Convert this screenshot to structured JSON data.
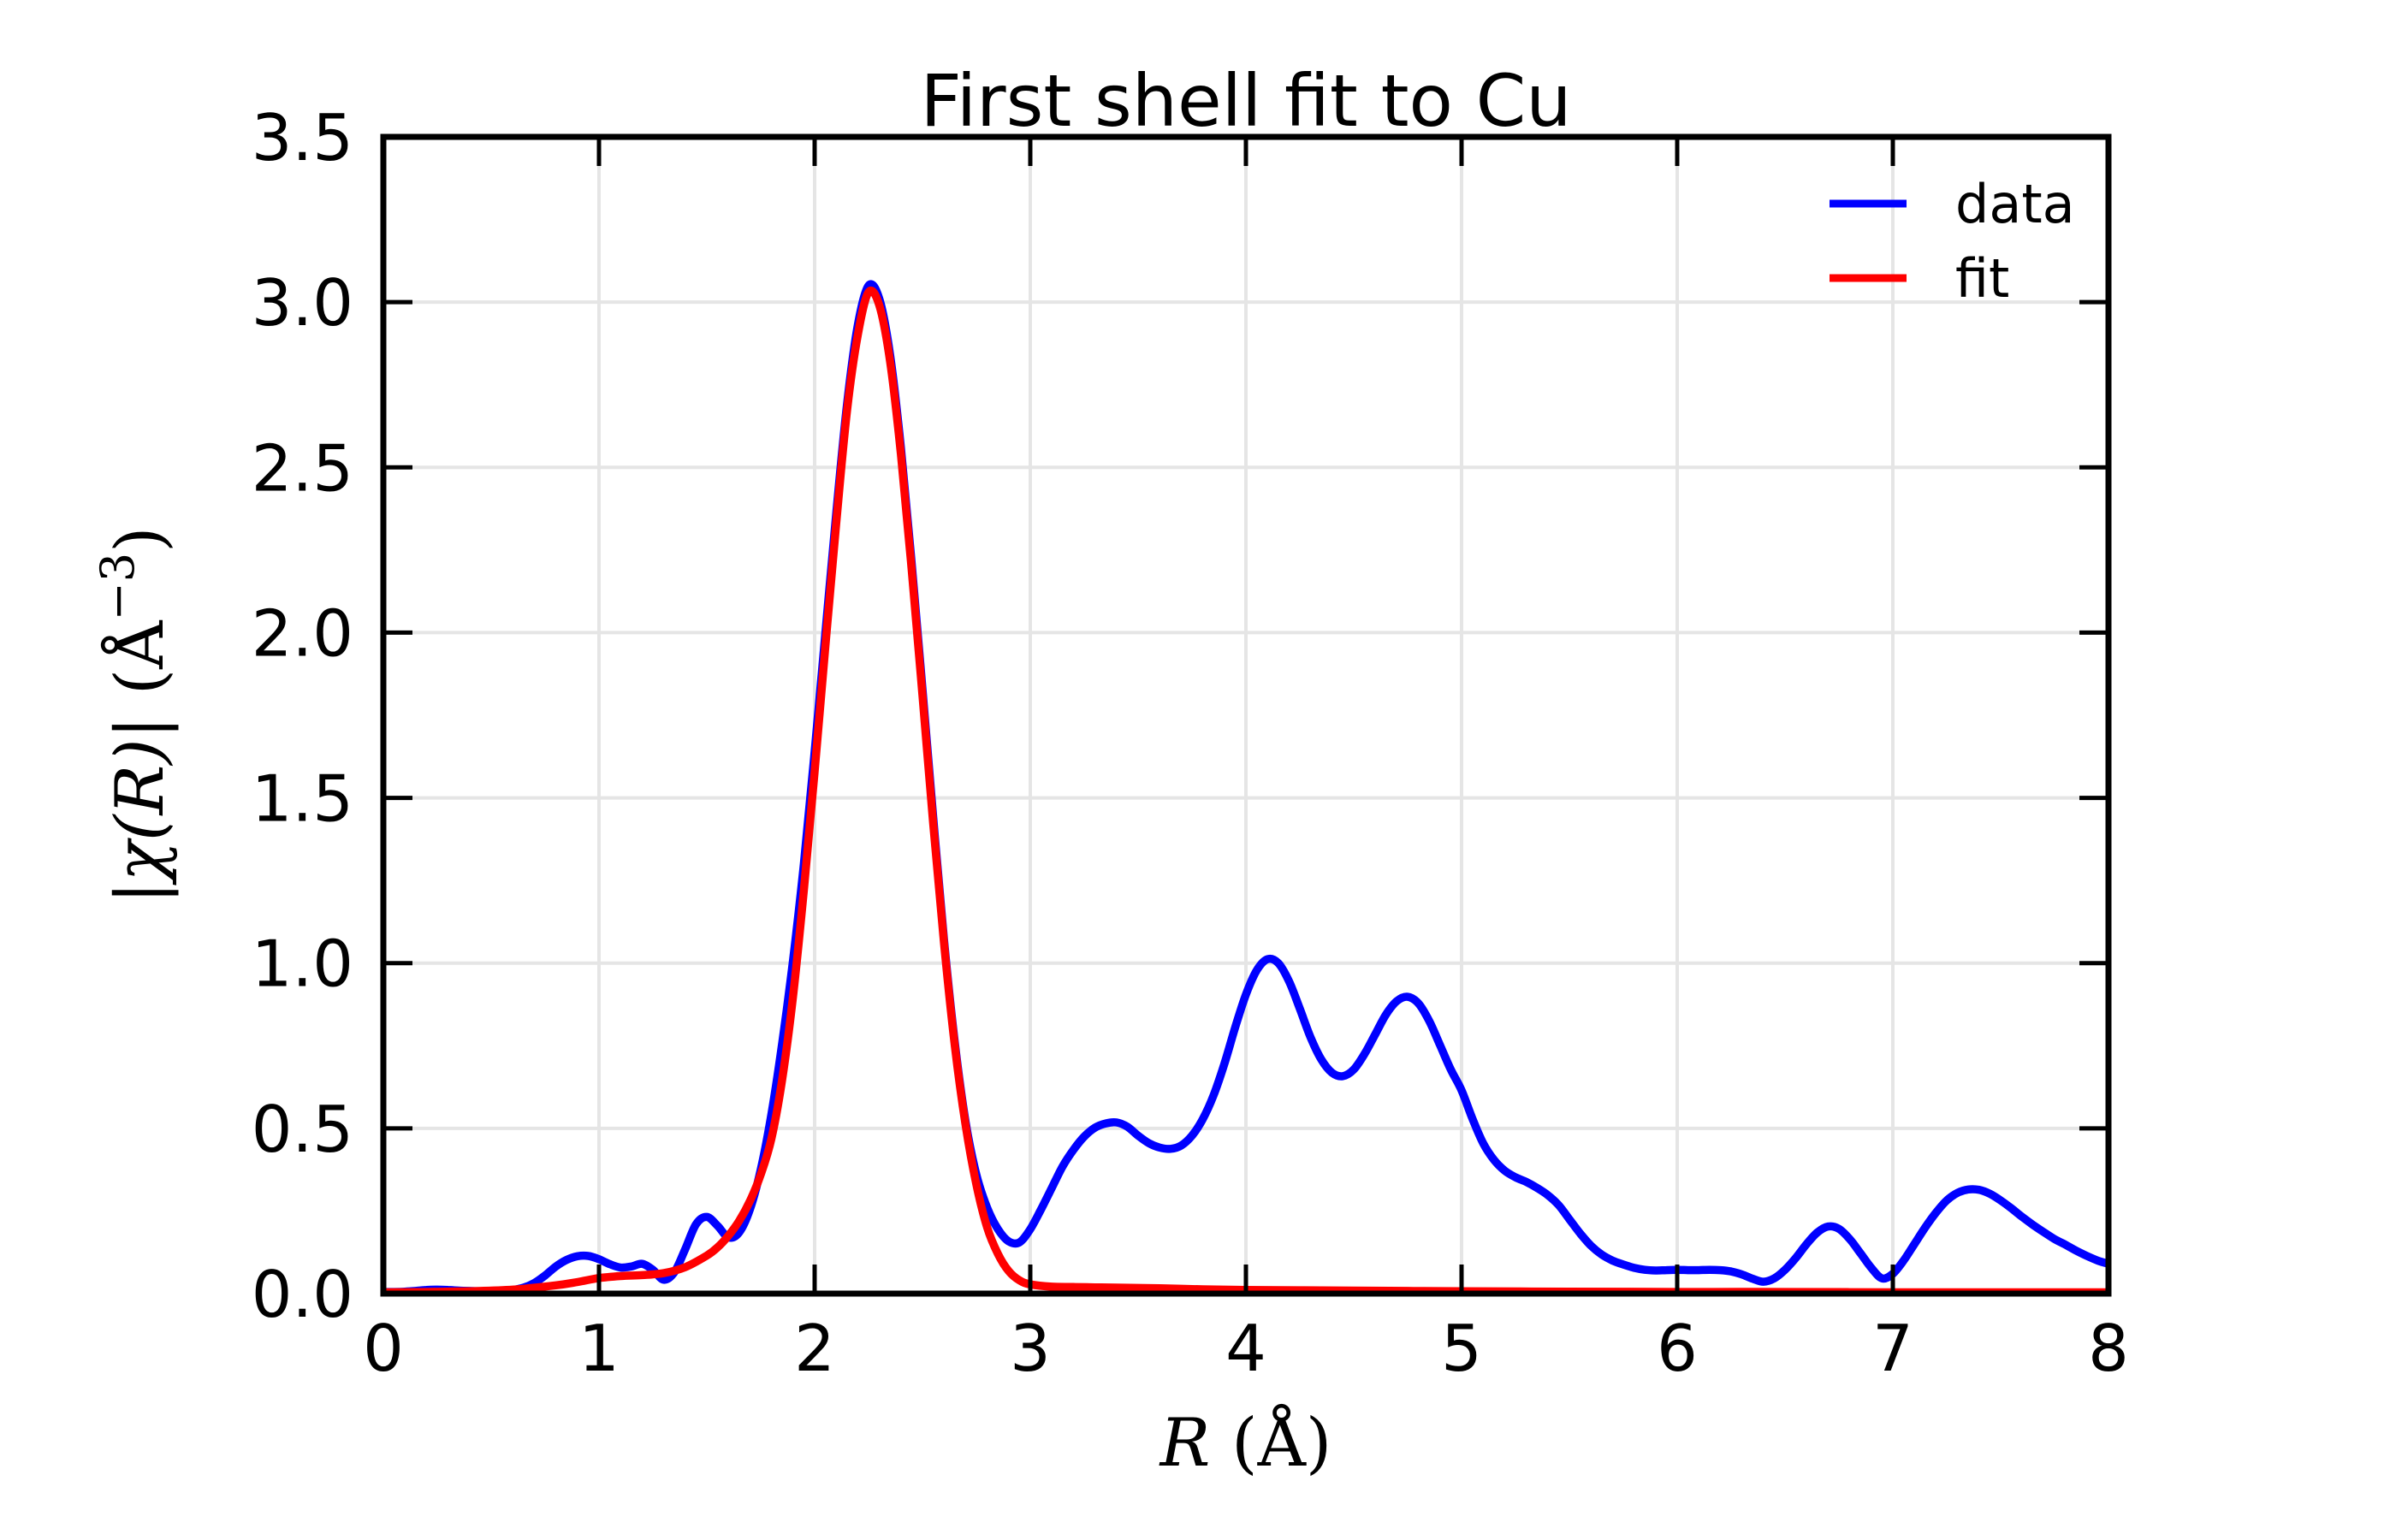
{
  "title": "First shell fit to Cu",
  "legend": {
    "entries": [
      {
        "label": "data",
        "color": "#0000ff"
      },
      {
        "label": "fit",
        "color": "#ff0000"
      }
    ],
    "position": "upper right",
    "frame": false
  },
  "colors": {
    "data_line": "#0000ff",
    "fit_line": "#ff0000",
    "grid": "#e5e5e5",
    "axes": "#000000",
    "background": "#ffffff"
  },
  "chart_data": {
    "type": "line",
    "title": "First shell fit to Cu",
    "xlabel": "R (Å)",
    "ylabel": "|χ(R)| (Å−3)",
    "xlabel_parts": {
      "italic": "R",
      "normal": " (Å)"
    },
    "ylabel_parts": {
      "italic": "|χ(R)|",
      "pre_sup": " (Å",
      "sup": "−3",
      "post": ")"
    },
    "xlim": [
      0,
      8
    ],
    "ylim": [
      0.0,
      3.5
    ],
    "xticks": [
      0,
      1,
      2,
      3,
      4,
      5,
      6,
      7,
      8
    ],
    "xtick_labels": [
      "0",
      "1",
      "2",
      "3",
      "4",
      "5",
      "6",
      "7",
      "8"
    ],
    "yticks": [
      0.0,
      0.5,
      1.0,
      1.5,
      2.0,
      2.5,
      3.0,
      3.5
    ],
    "ytick_labels": [
      "0.0",
      "0.5",
      "1.0",
      "1.5",
      "2.0",
      "2.5",
      "3.0",
      "3.5"
    ],
    "grid": true,
    "legend_position": "upper right",
    "series": [
      {
        "name": "data",
        "color": "#0000ff",
        "points": [
          [
            0.0,
            0.005
          ],
          [
            0.05,
            0.005
          ],
          [
            0.1,
            0.006
          ],
          [
            0.15,
            0.008
          ],
          [
            0.2,
            0.011
          ],
          [
            0.25,
            0.012
          ],
          [
            0.3,
            0.011
          ],
          [
            0.35,
            0.009
          ],
          [
            0.4,
            0.008
          ],
          [
            0.45,
            0.007
          ],
          [
            0.5,
            0.007
          ],
          [
            0.55,
            0.008
          ],
          [
            0.6,
            0.011
          ],
          [
            0.65,
            0.018
          ],
          [
            0.7,
            0.032
          ],
          [
            0.75,
            0.055
          ],
          [
            0.8,
            0.082
          ],
          [
            0.85,
            0.102
          ],
          [
            0.9,
            0.113
          ],
          [
            0.95,
            0.114
          ],
          [
            1.0,
            0.104
          ],
          [
            1.05,
            0.089
          ],
          [
            1.1,
            0.079
          ],
          [
            1.15,
            0.082
          ],
          [
            1.2,
            0.09
          ],
          [
            1.25,
            0.072
          ],
          [
            1.3,
            0.042
          ],
          [
            1.35,
            0.065
          ],
          [
            1.4,
            0.135
          ],
          [
            1.45,
            0.21
          ],
          [
            1.5,
            0.232
          ],
          [
            1.55,
            0.205
          ],
          [
            1.6,
            0.17
          ],
          [
            1.65,
            0.185
          ],
          [
            1.7,
            0.255
          ],
          [
            1.75,
            0.375
          ],
          [
            1.8,
            0.545
          ],
          [
            1.85,
            0.76
          ],
          [
            1.9,
            1.01
          ],
          [
            1.95,
            1.3
          ],
          [
            2.0,
            1.64
          ],
          [
            2.05,
            2.0
          ],
          [
            2.1,
            2.36
          ],
          [
            2.15,
            2.69
          ],
          [
            2.2,
            2.93
          ],
          [
            2.25,
            3.05
          ],
          [
            2.3,
            3.01
          ],
          [
            2.35,
            2.84
          ],
          [
            2.4,
            2.56
          ],
          [
            2.45,
            2.21
          ],
          [
            2.5,
            1.83
          ],
          [
            2.55,
            1.44
          ],
          [
            2.6,
            1.07
          ],
          [
            2.65,
            0.76
          ],
          [
            2.7,
            0.52
          ],
          [
            2.75,
            0.36
          ],
          [
            2.8,
            0.26
          ],
          [
            2.85,
            0.195
          ],
          [
            2.9,
            0.158
          ],
          [
            2.95,
            0.155
          ],
          [
            3.0,
            0.195
          ],
          [
            3.05,
            0.255
          ],
          [
            3.1,
            0.32
          ],
          [
            3.15,
            0.385
          ],
          [
            3.2,
            0.435
          ],
          [
            3.25,
            0.475
          ],
          [
            3.3,
            0.502
          ],
          [
            3.35,
            0.515
          ],
          [
            3.4,
            0.518
          ],
          [
            3.45,
            0.505
          ],
          [
            3.5,
            0.478
          ],
          [
            3.55,
            0.455
          ],
          [
            3.6,
            0.442
          ],
          [
            3.65,
            0.438
          ],
          [
            3.7,
            0.448
          ],
          [
            3.75,
            0.478
          ],
          [
            3.8,
            0.528
          ],
          [
            3.85,
            0.6
          ],
          [
            3.9,
            0.695
          ],
          [
            3.95,
            0.805
          ],
          [
            4.0,
            0.905
          ],
          [
            4.05,
            0.978
          ],
          [
            4.1,
            1.012
          ],
          [
            4.15,
            1.0
          ],
          [
            4.2,
            0.945
          ],
          [
            4.25,
            0.862
          ],
          [
            4.3,
            0.775
          ],
          [
            4.35,
            0.708
          ],
          [
            4.4,
            0.668
          ],
          [
            4.45,
            0.658
          ],
          [
            4.5,
            0.678
          ],
          [
            4.55,
            0.725
          ],
          [
            4.6,
            0.785
          ],
          [
            4.65,
            0.845
          ],
          [
            4.7,
            0.885
          ],
          [
            4.75,
            0.898
          ],
          [
            4.8,
            0.878
          ],
          [
            4.85,
            0.825
          ],
          [
            4.9,
            0.752
          ],
          [
            4.95,
            0.678
          ],
          [
            5.0,
            0.615
          ],
          [
            5.05,
            0.53
          ],
          [
            5.1,
            0.455
          ],
          [
            5.15,
            0.405
          ],
          [
            5.2,
            0.372
          ],
          [
            5.25,
            0.352
          ],
          [
            5.3,
            0.338
          ],
          [
            5.35,
            0.32
          ],
          [
            5.4,
            0.298
          ],
          [
            5.45,
            0.268
          ],
          [
            5.5,
            0.225
          ],
          [
            5.55,
            0.182
          ],
          [
            5.6,
            0.145
          ],
          [
            5.65,
            0.118
          ],
          [
            5.7,
            0.1
          ],
          [
            5.75,
            0.088
          ],
          [
            5.8,
            0.078
          ],
          [
            5.85,
            0.072
          ],
          [
            5.9,
            0.07
          ],
          [
            5.95,
            0.071
          ],
          [
            6.0,
            0.072
          ],
          [
            6.05,
            0.071
          ],
          [
            6.1,
            0.071
          ],
          [
            6.15,
            0.072
          ],
          [
            6.2,
            0.071
          ],
          [
            6.25,
            0.067
          ],
          [
            6.3,
            0.058
          ],
          [
            6.35,
            0.045
          ],
          [
            6.4,
            0.036
          ],
          [
            6.45,
            0.046
          ],
          [
            6.5,
            0.072
          ],
          [
            6.55,
            0.108
          ],
          [
            6.6,
            0.15
          ],
          [
            6.65,
            0.185
          ],
          [
            6.7,
            0.203
          ],
          [
            6.75,
            0.196
          ],
          [
            6.8,
            0.165
          ],
          [
            6.85,
            0.122
          ],
          [
            6.9,
            0.078
          ],
          [
            6.95,
            0.046
          ],
          [
            7.0,
            0.06
          ],
          [
            7.05,
            0.1
          ],
          [
            7.1,
            0.15
          ],
          [
            7.15,
            0.2
          ],
          [
            7.2,
            0.245
          ],
          [
            7.25,
            0.282
          ],
          [
            7.3,
            0.305
          ],
          [
            7.35,
            0.315
          ],
          [
            7.4,
            0.314
          ],
          [
            7.45,
            0.302
          ],
          [
            7.5,
            0.282
          ],
          [
            7.55,
            0.258
          ],
          [
            7.6,
            0.232
          ],
          [
            7.65,
            0.208
          ],
          [
            7.7,
            0.186
          ],
          [
            7.75,
            0.165
          ],
          [
            7.8,
            0.148
          ],
          [
            7.85,
            0.13
          ],
          [
            7.9,
            0.114
          ],
          [
            7.95,
            0.1
          ],
          [
            8.0,
            0.09
          ]
        ]
      },
      {
        "name": "fit",
        "color": "#ff0000",
        "points": [
          [
            0.0,
            0.004
          ],
          [
            0.2,
            0.005
          ],
          [
            0.4,
            0.007
          ],
          [
            0.6,
            0.012
          ],
          [
            0.8,
            0.025
          ],
          [
            0.9,
            0.035
          ],
          [
            1.0,
            0.047
          ],
          [
            1.1,
            0.053
          ],
          [
            1.2,
            0.056
          ],
          [
            1.3,
            0.062
          ],
          [
            1.4,
            0.08
          ],
          [
            1.5,
            0.115
          ],
          [
            1.55,
            0.14
          ],
          [
            1.6,
            0.175
          ],
          [
            1.65,
            0.22
          ],
          [
            1.7,
            0.28
          ],
          [
            1.75,
            0.36
          ],
          [
            1.8,
            0.47
          ],
          [
            1.85,
            0.65
          ],
          [
            1.9,
            0.9
          ],
          [
            1.95,
            1.22
          ],
          [
            2.0,
            1.58
          ],
          [
            2.05,
            1.96
          ],
          [
            2.1,
            2.33
          ],
          [
            2.15,
            2.67
          ],
          [
            2.2,
            2.9
          ],
          [
            2.25,
            3.03
          ],
          [
            2.3,
            2.99
          ],
          [
            2.35,
            2.82
          ],
          [
            2.4,
            2.54
          ],
          [
            2.45,
            2.19
          ],
          [
            2.5,
            1.81
          ],
          [
            2.55,
            1.42
          ],
          [
            2.6,
            1.06
          ],
          [
            2.65,
            0.75
          ],
          [
            2.7,
            0.51
          ],
          [
            2.75,
            0.33
          ],
          [
            2.8,
            0.2
          ],
          [
            2.85,
            0.12
          ],
          [
            2.9,
            0.068
          ],
          [
            2.95,
            0.04
          ],
          [
            3.0,
            0.028
          ],
          [
            3.1,
            0.021
          ],
          [
            3.2,
            0.02
          ],
          [
            3.3,
            0.019
          ],
          [
            3.4,
            0.018
          ],
          [
            3.6,
            0.016
          ],
          [
            3.8,
            0.013
          ],
          [
            4.0,
            0.011
          ],
          [
            4.25,
            0.01
          ],
          [
            4.5,
            0.009
          ],
          [
            4.75,
            0.008
          ],
          [
            5.0,
            0.007
          ],
          [
            5.5,
            0.006
          ],
          [
            6.0,
            0.005
          ],
          [
            6.5,
            0.005
          ],
          [
            7.0,
            0.004
          ],
          [
            7.5,
            0.004
          ],
          [
            8.0,
            0.004
          ]
        ]
      }
    ]
  }
}
